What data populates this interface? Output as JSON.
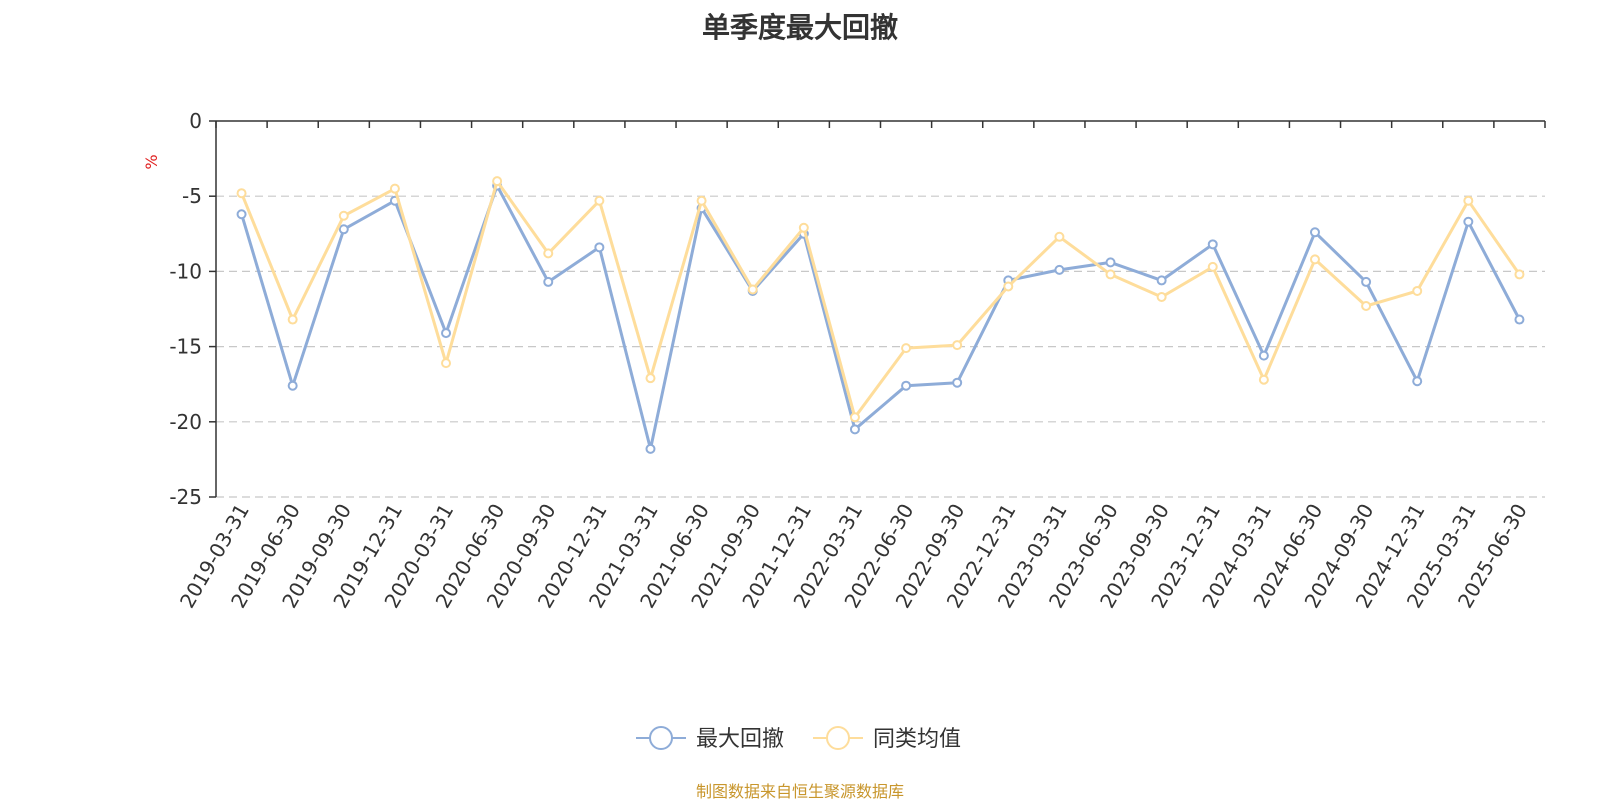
{
  "chart_data": {
    "type": "line",
    "title": "单季度最大回撤",
    "ylabel": "%",
    "ylim": [
      -25,
      0
    ],
    "yticks": [
      0,
      -5,
      -10,
      -15,
      -20,
      -25
    ],
    "grid": "horizontal dashed",
    "legend_position": "bottom-center",
    "categories": [
      "2019-03-31",
      "2019-06-30",
      "2019-09-30",
      "2019-12-31",
      "2020-03-31",
      "2020-06-30",
      "2020-09-30",
      "2020-12-31",
      "2021-03-31",
      "2021-06-30",
      "2021-09-30",
      "2021-12-31",
      "2022-03-31",
      "2022-06-30",
      "2022-09-30",
      "2022-12-31",
      "2023-03-31",
      "2023-06-30",
      "2023-09-30",
      "2023-12-31",
      "2024-03-31",
      "2024-06-30",
      "2024-09-30",
      "2024-12-31",
      "2025-03-31",
      "2025-06-30"
    ],
    "series": [
      {
        "name": "最大回撤",
        "color": "#8eacd8",
        "values": [
          -6.2,
          -17.6,
          -7.2,
          -5.3,
          -14.1,
          -4.3,
          -10.7,
          -8.4,
          -21.8,
          -5.8,
          -11.3,
          -7.5,
          -20.5,
          -17.6,
          -17.4,
          -10.6,
          -9.9,
          -9.4,
          -10.6,
          -8.2,
          -15.6,
          -7.4,
          -10.7,
          -17.3,
          -6.7,
          -13.2
        ]
      },
      {
        "name": "同类均值",
        "color": "#fedd9b",
        "values": [
          -4.8,
          -13.2,
          -6.3,
          -4.5,
          -16.1,
          -4.0,
          -8.8,
          -5.3,
          -17.1,
          -5.3,
          -11.2,
          -7.1,
          -19.7,
          -15.1,
          -14.9,
          -11.0,
          -7.7,
          -10.2,
          -11.7,
          -9.7,
          -17.2,
          -9.2,
          -12.3,
          -11.3,
          -5.3,
          -10.2
        ]
      }
    ]
  },
  "source": {
    "text": "制图数据来自恒生聚源数据库",
    "color": "#c8962c"
  },
  "ylabel_color": "#e02020"
}
